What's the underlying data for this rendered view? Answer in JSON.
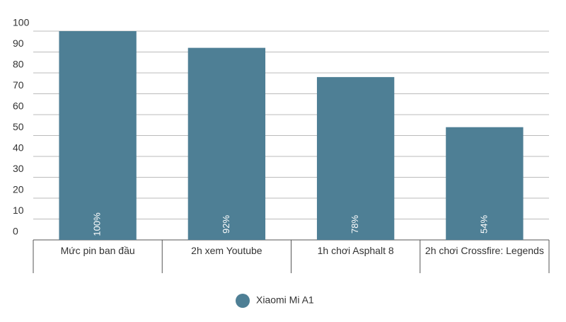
{
  "chart_data": {
    "type": "bar",
    "categories": [
      "Mức pin ban đầu",
      "2h xem Youtube",
      "1h chơi Asphalt 8",
      "2h chơi Crossfire: Legends"
    ],
    "series": [
      {
        "name": "Xiaomi Mi A1",
        "color": "#4e7f95",
        "values": [
          100,
          92,
          78,
          54
        ],
        "value_labels": [
          "100%",
          "92%",
          "78%",
          "54%"
        ]
      }
    ],
    "ylim": [
      0,
      100
    ],
    "yticks": [
      0,
      10,
      20,
      30,
      40,
      50,
      60,
      70,
      80,
      90,
      100
    ],
    "grid": true
  }
}
